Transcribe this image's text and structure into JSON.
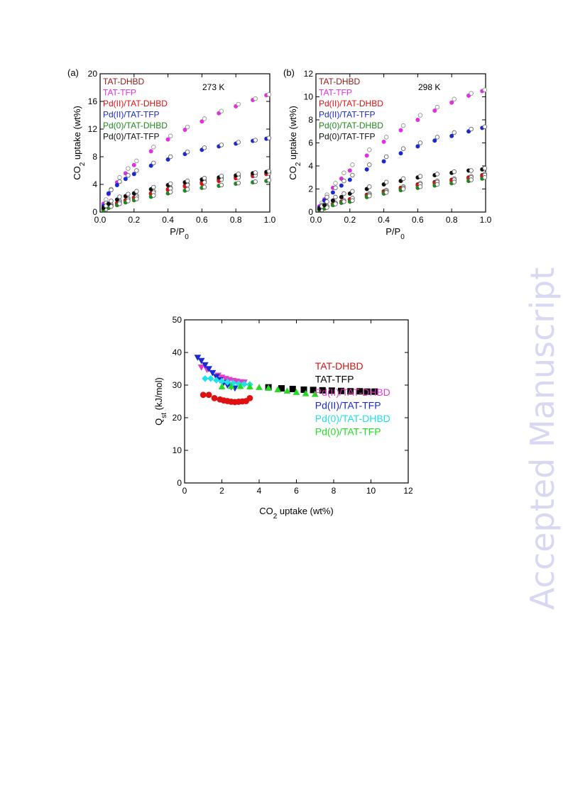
{
  "watermark": "Accepted Manuscript",
  "chart_data": [
    {
      "id": "a",
      "type": "scatter",
      "panel_label": "(a)",
      "annotation": "273 K",
      "xlabel": "P/P",
      "xlabel_sub": "0",
      "ylabel_pre": "CO",
      "ylabel_sub": "2",
      "ylabel_post": " uptake (wt%)",
      "xlim": [
        0,
        1.0
      ],
      "ylim": [
        0,
        20
      ],
      "xticks": [
        "0.0",
        "0.2",
        "0.4",
        "0.6",
        "0.8",
        "1.0"
      ],
      "yticks": [
        "0",
        "4",
        "8",
        "12",
        "16",
        "20"
      ],
      "legend_placement": "top-left",
      "series": [
        {
          "name": "TAT-DHBD",
          "color": "#8b1a1a",
          "x": [
            0.02,
            0.05,
            0.1,
            0.15,
            0.2,
            0.3,
            0.4,
            0.5,
            0.6,
            0.7,
            0.8,
            0.9,
            0.98
          ],
          "adsorption": [
            0.4,
            0.8,
            1.3,
            1.7,
            2.1,
            2.7,
            3.3,
            3.8,
            4.3,
            4.7,
            5.1,
            5.4,
            5.7
          ],
          "desorption": [
            0.6,
            1.1,
            1.6,
            2.0,
            2.4,
            3.0,
            3.5,
            4.0,
            4.5,
            4.9,
            5.2,
            5.5,
            5.8
          ]
        },
        {
          "name": "TAT-TFP",
          "color": "#e030e0",
          "x": [
            0.02,
            0.05,
            0.1,
            0.15,
            0.2,
            0.3,
            0.4,
            0.5,
            0.6,
            0.7,
            0.8,
            0.9,
            0.98
          ],
          "adsorption": [
            1.2,
            2.6,
            4.3,
            5.6,
            6.8,
            8.8,
            10.5,
            11.9,
            13.1,
            14.3,
            15.3,
            16.2,
            16.9
          ],
          "desorption": [
            1.8,
            3.3,
            5.0,
            6.3,
            7.4,
            9.4,
            11.0,
            12.3,
            13.5,
            14.6,
            15.6,
            16.4,
            17.0
          ]
        },
        {
          "name": "Pd(II)/TAT-DHBD",
          "color": "#e01010",
          "x": [
            0.02,
            0.05,
            0.1,
            0.15,
            0.2,
            0.3,
            0.4,
            0.5,
            0.6,
            0.7,
            0.8,
            0.9,
            0.98
          ],
          "adsorption": [
            0.4,
            0.7,
            1.2,
            1.6,
            2.0,
            2.6,
            3.2,
            3.7,
            4.1,
            4.5,
            4.9,
            5.2,
            5.5
          ],
          "desorption": [
            0.5,
            0.9,
            1.4,
            1.8,
            2.2,
            2.8,
            3.4,
            3.9,
            4.3,
            4.7,
            5.0,
            5.3,
            5.6
          ]
        },
        {
          "name": "Pd(II)/TAT-TFP",
          "color": "#1a2ad0",
          "x": [
            0.02,
            0.05,
            0.1,
            0.15,
            0.2,
            0.3,
            0.4,
            0.5,
            0.6,
            0.7,
            0.8,
            0.9,
            0.98
          ],
          "adsorption": [
            0.9,
            2.7,
            3.9,
            4.8,
            5.5,
            6.7,
            7.6,
            8.4,
            9.0,
            9.5,
            9.9,
            10.3,
            10.6
          ],
          "desorption": [
            1.3,
            3.2,
            4.4,
            5.3,
            6.0,
            7.1,
            8.0,
            8.7,
            9.3,
            9.7,
            10.1,
            10.4,
            10.7
          ]
        },
        {
          "name": "Pd(0)/TAT-DHBD",
          "color": "#1e8a1e",
          "x": [
            0.02,
            0.05,
            0.1,
            0.15,
            0.2,
            0.3,
            0.4,
            0.5,
            0.6,
            0.7,
            0.8,
            0.9,
            0.98
          ],
          "adsorption": [
            0.3,
            0.6,
            1.0,
            1.4,
            1.7,
            2.2,
            2.7,
            3.1,
            3.5,
            3.8,
            4.1,
            4.3,
            4.5
          ],
          "desorption": [
            0.4,
            0.8,
            1.2,
            1.6,
            1.9,
            2.4,
            2.9,
            3.3,
            3.6,
            3.9,
            4.2,
            4.4,
            4.6
          ]
        },
        {
          "name": "Pd(0)/TAT-TFP",
          "color": "#111111",
          "x": [
            0.02,
            0.05,
            0.1,
            0.15,
            0.2,
            0.3,
            0.4,
            0.5,
            0.6,
            0.7,
            0.8,
            0.9,
            0.98
          ],
          "adsorption": [
            0.6,
            1.2,
            1.8,
            2.3,
            2.7,
            3.3,
            3.9,
            4.3,
            4.7,
            5.0,
            5.3,
            5.6,
            5.8
          ],
          "desorption": [
            0.9,
            1.6,
            2.2,
            2.6,
            3.0,
            3.6,
            4.1,
            4.5,
            4.9,
            5.2,
            5.5,
            5.7,
            5.9
          ]
        }
      ]
    },
    {
      "id": "b",
      "type": "scatter",
      "panel_label": "(b)",
      "annotation": "298 K",
      "xlabel": "P/P",
      "xlabel_sub": "0",
      "ylabel_pre": "CO",
      "ylabel_sub": "2",
      "ylabel_post": " uptake (wt%)",
      "xlim": [
        0,
        1.0
      ],
      "ylim": [
        0,
        12
      ],
      "xticks": [
        "0.0",
        "0.2",
        "0.4",
        "0.6",
        "0.8",
        "1.0"
      ],
      "yticks": [
        "0",
        "2",
        "4",
        "6",
        "8",
        "10",
        "12"
      ],
      "legend_placement": "top-left",
      "series": [
        {
          "name": "TAT-DHBD",
          "color": "#8b1a1a",
          "x": [
            0.02,
            0.05,
            0.1,
            0.15,
            0.2,
            0.3,
            0.4,
            0.5,
            0.6,
            0.7,
            0.8,
            0.9,
            0.98
          ],
          "adsorption": [
            0.2,
            0.4,
            0.7,
            0.9,
            1.1,
            1.5,
            1.8,
            2.1,
            2.4,
            2.6,
            2.8,
            3.0,
            3.2
          ],
          "desorption": [
            0.3,
            0.5,
            0.8,
            1.0,
            1.2,
            1.6,
            1.9,
            2.2,
            2.5,
            2.7,
            2.9,
            3.1,
            3.3
          ]
        },
        {
          "name": "TAT-TFP",
          "color": "#e030e0",
          "x": [
            0.02,
            0.05,
            0.1,
            0.15,
            0.2,
            0.3,
            0.4,
            0.5,
            0.6,
            0.7,
            0.8,
            0.9,
            0.98
          ],
          "adsorption": [
            0.5,
            1.1,
            2.1,
            2.9,
            3.6,
            4.9,
            6.1,
            7.1,
            8.0,
            8.8,
            9.5,
            10.1,
            10.5
          ],
          "desorption": [
            0.8,
            1.5,
            2.5,
            3.4,
            4.1,
            5.4,
            6.5,
            7.5,
            8.4,
            9.1,
            9.8,
            10.3,
            10.6
          ]
        },
        {
          "name": "Pd(II)/TAT-DHBD",
          "color": "#e01010",
          "x": [
            0.02,
            0.05,
            0.1,
            0.15,
            0.2,
            0.3,
            0.4,
            0.5,
            0.6,
            0.7,
            0.8,
            0.9,
            0.98
          ],
          "adsorption": [
            0.2,
            0.4,
            0.7,
            0.9,
            1.1,
            1.4,
            1.7,
            2.0,
            2.3,
            2.5,
            2.7,
            2.9,
            3.1
          ],
          "desorption": [
            0.3,
            0.5,
            0.8,
            1.0,
            1.2,
            1.5,
            1.8,
            2.1,
            2.4,
            2.6,
            2.8,
            3.0,
            3.2
          ]
        },
        {
          "name": "Pd(II)/TAT-TFP",
          "color": "#1a2ad0",
          "x": [
            0.02,
            0.05,
            0.1,
            0.15,
            0.2,
            0.3,
            0.4,
            0.5,
            0.6,
            0.7,
            0.8,
            0.9,
            0.98
          ],
          "adsorption": [
            0.4,
            1.0,
            1.7,
            2.3,
            2.8,
            3.7,
            4.4,
            5.1,
            5.7,
            6.2,
            6.6,
            7.0,
            7.3
          ],
          "desorption": [
            0.6,
            1.3,
            2.1,
            2.7,
            3.2,
            4.1,
            4.8,
            5.5,
            6.0,
            6.5,
            6.9,
            7.2,
            7.4
          ]
        },
        {
          "name": "Pd(0)/TAT-DHBD",
          "color": "#1e8a1e",
          "x": [
            0.02,
            0.05,
            0.1,
            0.15,
            0.2,
            0.3,
            0.4,
            0.5,
            0.6,
            0.7,
            0.8,
            0.9,
            0.98
          ],
          "adsorption": [
            0.2,
            0.3,
            0.6,
            0.8,
            0.9,
            1.3,
            1.6,
            1.9,
            2.1,
            2.3,
            2.5,
            2.7,
            2.9
          ],
          "desorption": [
            0.2,
            0.4,
            0.7,
            0.9,
            1.0,
            1.4,
            1.7,
            2.0,
            2.2,
            2.4,
            2.6,
            2.8,
            3.0
          ]
        },
        {
          "name": "Pd(0)/TAT-TFP",
          "color": "#111111",
          "x": [
            0.02,
            0.05,
            0.1,
            0.15,
            0.2,
            0.3,
            0.4,
            0.5,
            0.6,
            0.7,
            0.8,
            0.9,
            0.98
          ],
          "adsorption": [
            0.3,
            0.6,
            1.0,
            1.3,
            1.6,
            2.0,
            2.4,
            2.7,
            3.0,
            3.2,
            3.4,
            3.6,
            3.7
          ],
          "desorption": [
            0.5,
            0.9,
            1.3,
            1.6,
            1.8,
            2.2,
            2.6,
            2.9,
            3.1,
            3.3,
            3.5,
            3.6,
            3.8
          ]
        }
      ]
    },
    {
      "id": "c",
      "type": "scatter",
      "xlabel_pre": "CO",
      "xlabel_sub": "2",
      "xlabel_post": " uptake (wt%)",
      "ylabel_pre": "Q",
      "ylabel_sub": "st",
      "ylabel_post": " (kJ/mol)",
      "xlim": [
        0,
        12
      ],
      "ylim": [
        0,
        50
      ],
      "xticks": [
        "0",
        "2",
        "4",
        "6",
        "8",
        "10",
        "12"
      ],
      "yticks": [
        "0",
        "10",
        "20",
        "30",
        "40",
        "50"
      ],
      "legend_placement": "bottom-right",
      "series": [
        {
          "name": "TAT-DHBD",
          "color": "#e01010",
          "marker": "circle",
          "x": [
            1.0,
            1.3,
            1.6,
            1.9,
            2.1,
            2.3,
            2.5,
            2.7,
            2.9,
            3.1,
            3.3,
            3.5
          ],
          "y": [
            27.0,
            27.0,
            26.0,
            25.6,
            25.3,
            25.1,
            24.9,
            24.8,
            24.9,
            25.0,
            25.1,
            26.0
          ]
        },
        {
          "name": "TAT-TFP",
          "color": "#000000",
          "marker": "square",
          "x": [
            4.5,
            5.2,
            5.8,
            6.4,
            6.9,
            7.4,
            7.9,
            8.4,
            8.9,
            9.4,
            9.8,
            10.2
          ],
          "y": [
            29.3,
            29.0,
            28.8,
            28.6,
            28.5,
            28.4,
            28.3,
            28.2,
            28.1,
            28.1,
            28.0,
            28.0
          ]
        },
        {
          "name": "Pd(II)/TAT-DHBD",
          "color": "#e040c8",
          "marker": "triangle-down",
          "x": [
            0.9,
            1.2,
            1.5,
            1.8,
            2.0,
            2.2,
            2.4,
            2.6,
            2.8,
            3.0,
            3.2
          ],
          "y": [
            35.5,
            34.8,
            33.8,
            33.0,
            32.4,
            32.0,
            31.7,
            31.4,
            31.2,
            31.0,
            30.9
          ]
        },
        {
          "name": "Pd(II)/TAT-TFP",
          "color": "#1a2ad0",
          "marker": "triangle-down",
          "x": [
            0.7,
            0.9,
            1.1,
            1.3,
            1.5,
            1.7,
            1.9,
            2.1,
            2.3,
            2.5,
            2.7
          ],
          "y": [
            38.5,
            37.5,
            36.2,
            35.0,
            33.8,
            32.6,
            31.6,
            30.8,
            30.0,
            29.5,
            29.1
          ]
        },
        {
          "name": "Pd(0)/TAT-DHBD",
          "color": "#20e0e8",
          "marker": "diamond",
          "x": [
            1.1,
            1.4,
            1.7,
            2.0,
            2.3,
            2.6,
            2.9,
            3.2,
            3.5
          ],
          "y": [
            32.0,
            32.0,
            31.5,
            31.2,
            30.9,
            30.6,
            30.4,
            30.3,
            30.2
          ]
        },
        {
          "name": "Pd(0)/TAT-TFP",
          "color": "#22dd22",
          "marker": "triangle-up",
          "x": [
            2.0,
            2.5,
            3.0,
            3.5,
            4.0,
            4.5,
            5.0,
            5.5,
            6.0,
            6.5,
            7.0
          ],
          "y": [
            29.5,
            29.6,
            29.6,
            29.5,
            29.3,
            29.1,
            28.6,
            28.2,
            27.8,
            27.4,
            27.2
          ]
        }
      ]
    }
  ]
}
